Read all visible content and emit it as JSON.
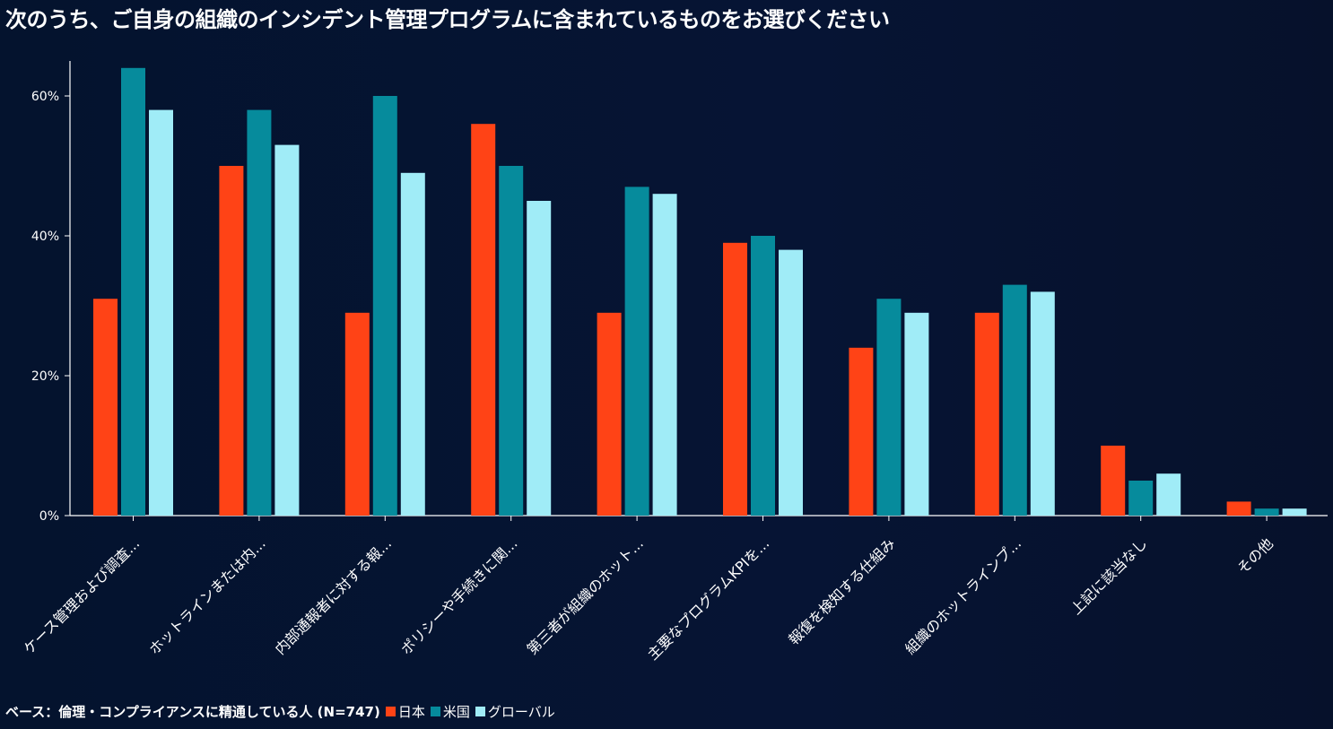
{
  "chart_data": {
    "type": "bar",
    "title": "次のうち、ご自身の組織のインシデント管理プログラムに含まれているものをお選びください",
    "xlabel": "",
    "ylabel": "",
    "ylim": [
      0,
      65
    ],
    "yticks": [
      0,
      20,
      40,
      60
    ],
    "ytick_labels": [
      "0%",
      "20%",
      "40%",
      "60%"
    ],
    "grid": false,
    "categories": [
      "ケース管理および調査...",
      "ホットラインまたは内...",
      "内部通報者に対する報...",
      "ポリシーや手続きに関...",
      "第三者が組織のホット...",
      "主要なプログラムKPIを...",
      "報復を検知する仕組み",
      "組織のホットラインプ...",
      "上記に該当なし",
      "その他"
    ],
    "series": [
      {
        "name": "日本",
        "color": "#ff4316",
        "values": [
          31,
          50,
          29,
          56,
          29,
          39,
          24,
          29,
          10,
          2
        ]
      },
      {
        "name": "米国",
        "color": "#068b9c",
        "values": [
          64,
          58,
          60,
          50,
          47,
          40,
          31,
          33,
          5,
          1
        ]
      },
      {
        "name": "グローバル",
        "color": "#a0ecf7",
        "values": [
          58,
          53,
          49,
          45,
          46,
          38,
          29,
          32,
          6,
          1
        ]
      }
    ],
    "legend_position": "bottom-left"
  },
  "footer": {
    "base_note": "ベース：倫理・コンプライアンスに精通している人 (N=747)"
  }
}
